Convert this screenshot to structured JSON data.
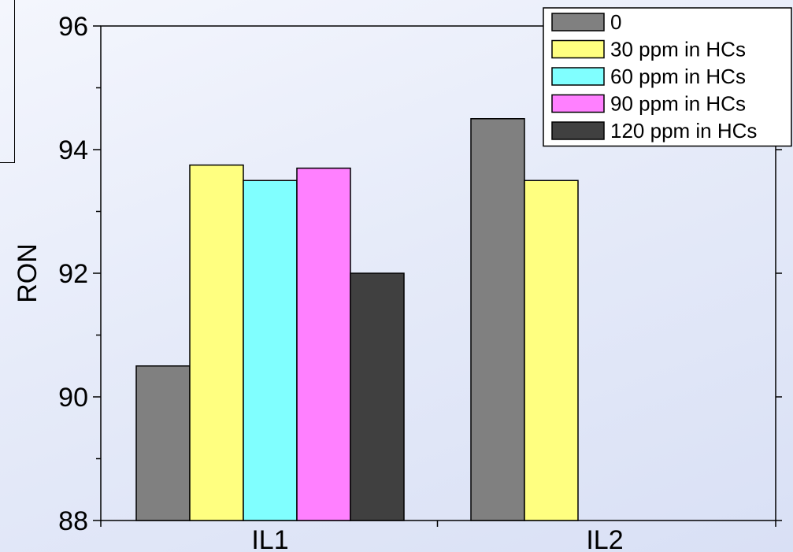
{
  "chart_data": {
    "type": "bar",
    "title": "",
    "xlabel": "",
    "ylabel": "RON",
    "ylim": [
      88,
      96
    ],
    "yticks": [
      88,
      90,
      92,
      94,
      96
    ],
    "categories": [
      "IL1",
      "IL2"
    ],
    "grid": false,
    "legend_position": "top-right",
    "series": [
      {
        "name": "0",
        "color": "#808080",
        "values": [
          90.5,
          94.5
        ]
      },
      {
        "name": "30 ppm in HCs",
        "color": "#ffff80",
        "values": [
          93.75,
          93.5
        ]
      },
      {
        "name": "60 ppm in HCs",
        "color": "#80ffff",
        "values": [
          93.5,
          null
        ]
      },
      {
        "name": "90 ppm in HCs",
        "color": "#ff80ff",
        "values": [
          93.7,
          null
        ]
      },
      {
        "name": "120 ppm in HCs",
        "color": "#404040",
        "values": [
          92.0,
          null
        ]
      }
    ]
  }
}
